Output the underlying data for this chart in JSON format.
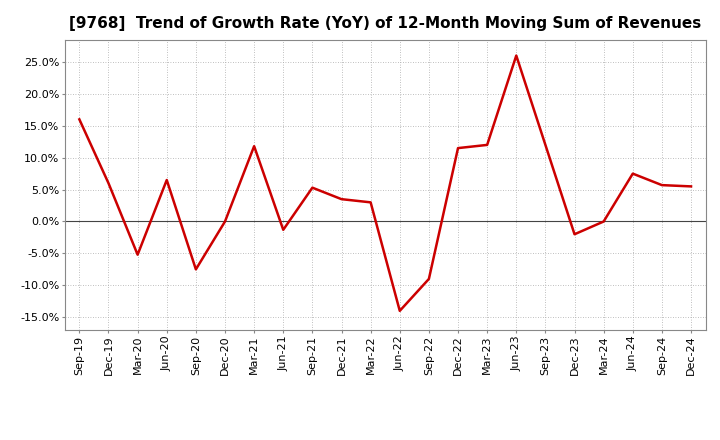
{
  "title": "[9768]  Trend of Growth Rate (YoY) of 12-Month Moving Sum of Revenues",
  "labels": [
    "Sep-19",
    "Dec-19",
    "Mar-20",
    "Jun-20",
    "Sep-20",
    "Dec-20",
    "Mar-21",
    "Jun-21",
    "Sep-21",
    "Dec-21",
    "Mar-22",
    "Jun-22",
    "Sep-22",
    "Dec-22",
    "Mar-23",
    "Jun-23",
    "Sep-23",
    "Dec-23",
    "Mar-24",
    "Jun-24",
    "Sep-24",
    "Dec-24"
  ],
  "values": [
    0.16,
    0.06,
    -0.052,
    0.065,
    -0.075,
    0.0,
    0.118,
    -0.013,
    0.053,
    0.035,
    0.03,
    -0.14,
    -0.09,
    0.115,
    0.12,
    0.26,
    0.12,
    -0.02,
    0.0,
    0.075,
    0.057,
    0.055
  ],
  "line_color": "#cc0000",
  "line_width": 1.8,
  "bg_color": "#ffffff",
  "grid_color": "#aaaaaa",
  "zero_line_color": "#444444",
  "ylim": [
    -0.17,
    0.285
  ],
  "yticks": [
    -0.15,
    -0.1,
    -0.05,
    0.0,
    0.05,
    0.1,
    0.15,
    0.2,
    0.25
  ],
  "title_fontsize": 11,
  "tick_fontsize": 8
}
